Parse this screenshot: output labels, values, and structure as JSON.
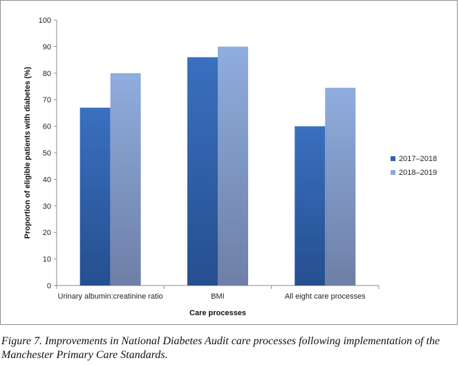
{
  "chart_data": {
    "type": "bar",
    "categories": [
      "Urinary albumin:creatinine ratio",
      "BMI",
      "All eight care processes"
    ],
    "series": [
      {
        "name": "2017–2018",
        "values": [
          67,
          86,
          60
        ],
        "color": "#2e62ad"
      },
      {
        "name": "2018–2019",
        "values": [
          80,
          90,
          74.5
        ],
        "color": "#8aa8d8"
      }
    ],
    "title": "",
    "xlabel": "Care processes",
    "ylabel": "Proportion of eligible patients with diabetes (%)",
    "ylim": [
      0,
      100
    ],
    "yticks": [
      0,
      10,
      20,
      30,
      40,
      50,
      60,
      70,
      80,
      90,
      100
    ],
    "grid": false,
    "legend_position": "right"
  },
  "caption": "Figure 7. Improvements in National Diabetes Audit care processes following implementation of the Manchester Primary Care Standards."
}
